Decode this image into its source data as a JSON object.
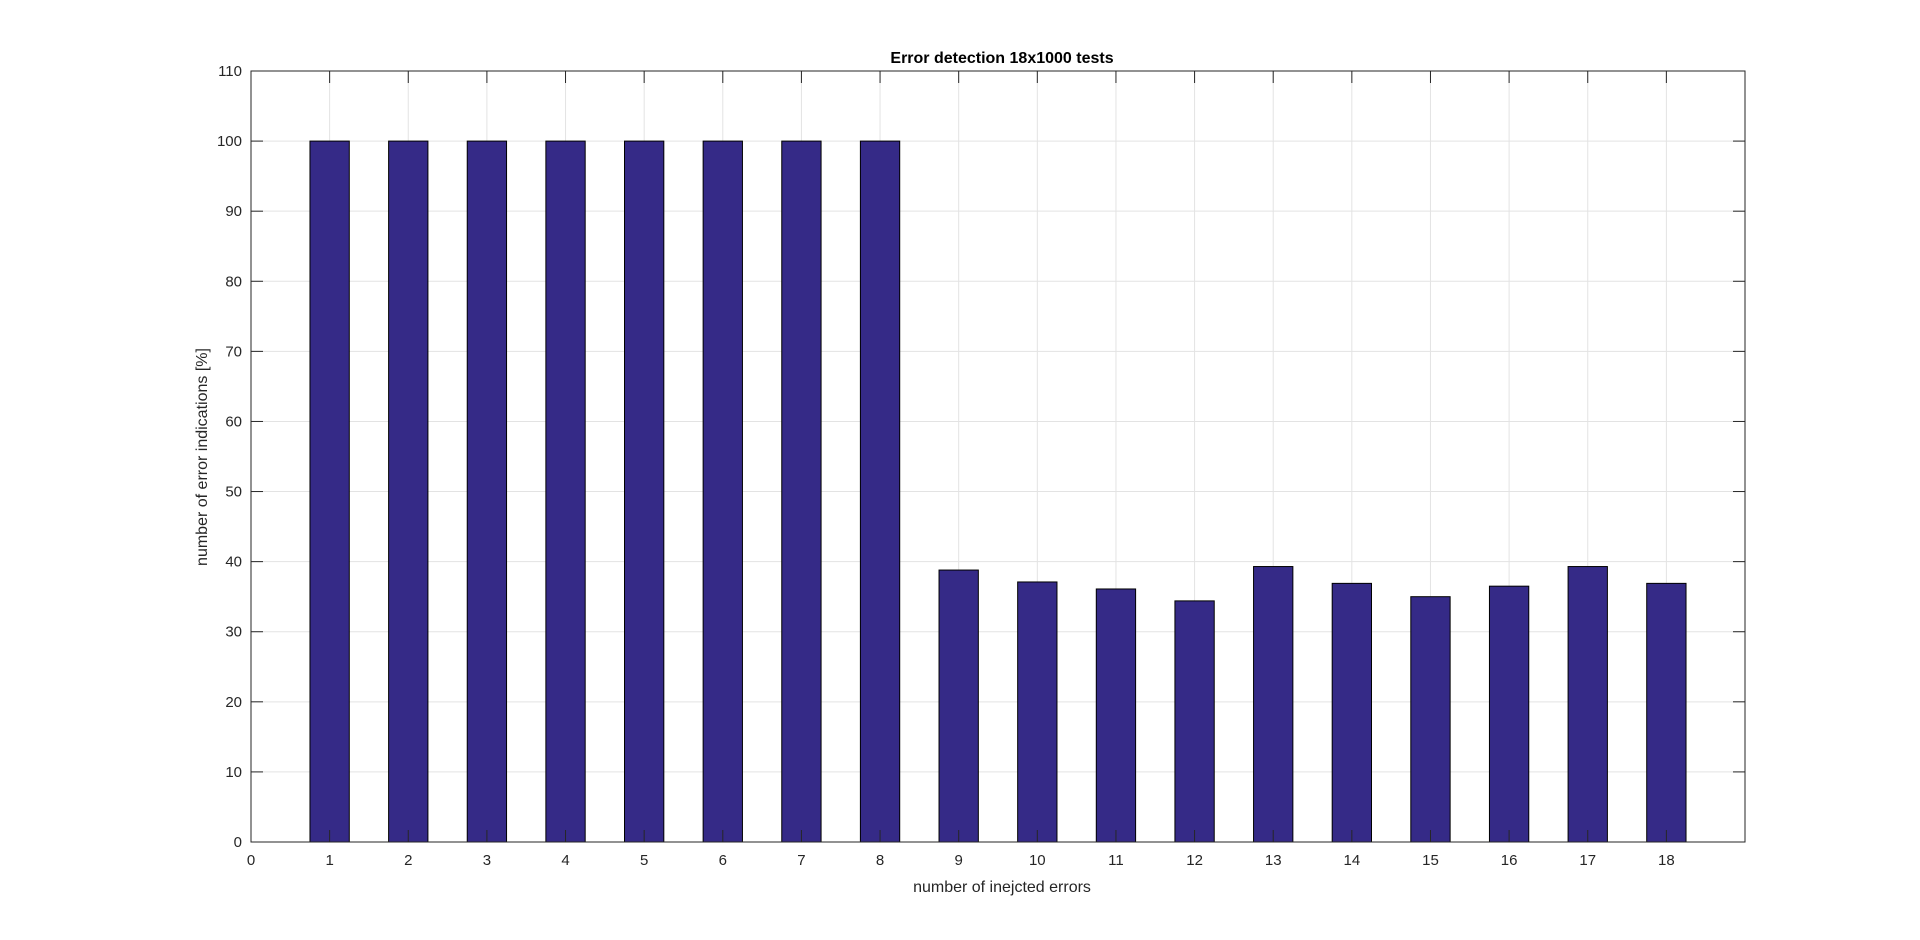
{
  "chart_data": {
    "type": "bar",
    "title": "Error detection 18x1000 tests",
    "xlabel": "number of inejcted errors",
    "ylabel": "number of error indications [%]",
    "x": [
      1,
      2,
      3,
      4,
      5,
      6,
      7,
      8,
      9,
      10,
      11,
      12,
      13,
      14,
      15,
      16,
      17,
      18
    ],
    "values": [
      100,
      100,
      100,
      100,
      100,
      100,
      100,
      100,
      38.8,
      37.1,
      36.1,
      34.4,
      39.3,
      36.9,
      35.0,
      36.5,
      39.3,
      36.9
    ],
    "xlim": [
      0,
      19
    ],
    "ylim": [
      0,
      110
    ],
    "xticks": [
      0,
      1,
      2,
      3,
      4,
      5,
      6,
      7,
      8,
      9,
      10,
      11,
      12,
      13,
      14,
      15,
      16,
      17,
      18
    ],
    "yticks": [
      0,
      10,
      20,
      30,
      40,
      50,
      60,
      70,
      80,
      90,
      100,
      110
    ],
    "grid": true,
    "bar_color": "#352a87",
    "legend": "none"
  }
}
